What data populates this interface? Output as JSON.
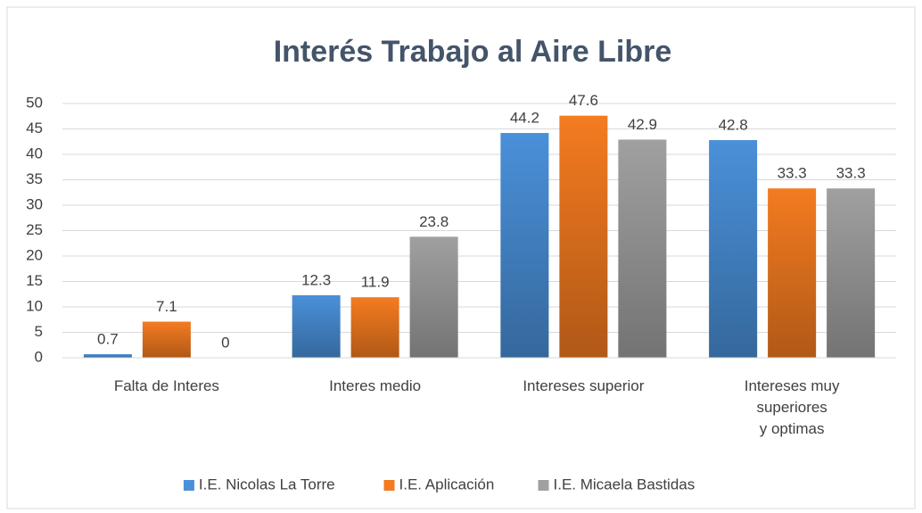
{
  "chart_data": {
    "type": "bar",
    "title": "Interés Trabajo al Aire Libre",
    "categories": [
      "Falta de Interes",
      "Interes medio",
      "Intereses superior",
      "Intereses muy\nsuperiores\ny optimas"
    ],
    "series": [
      {
        "name": "I.E. Nicolas La Torre",
        "color": "#4a90d9",
        "values": [
          0.7,
          12.3,
          44.2,
          42.8
        ]
      },
      {
        "name": "I.E. Aplicación",
        "color": "#f47b20",
        "values": [
          7.1,
          11.9,
          47.6,
          33.3
        ]
      },
      {
        "name": "I.E. Micaela Bastidas",
        "color": "#a0a0a0",
        "values": [
          0,
          23.8,
          42.9,
          33.3
        ]
      }
    ],
    "ylim": [
      0,
      50
    ],
    "yticks": [
      0,
      5,
      10,
      15,
      20,
      25,
      30,
      35,
      40,
      45,
      50
    ],
    "grid": true,
    "legend": "bottom"
  }
}
